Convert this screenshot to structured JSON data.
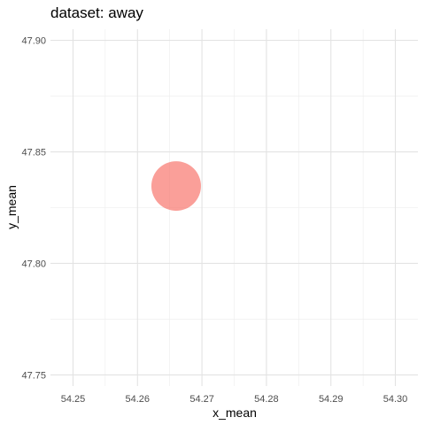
{
  "chart_data": {
    "type": "scatter",
    "title": "dataset: away",
    "xlabel": "x_mean",
    "ylabel": "y_mean",
    "xlim": [
      54.2465,
      54.3035
    ],
    "ylim": [
      47.745,
      47.905
    ],
    "x_ticks": [
      54.25,
      54.26,
      54.27,
      54.28,
      54.29,
      54.3
    ],
    "x_tick_labels": [
      "54.25",
      "54.26",
      "54.27",
      "54.28",
      "54.29",
      "54.30"
    ],
    "y_ticks": [
      47.75,
      47.8,
      47.85,
      47.9
    ],
    "y_tick_labels": [
      "47.75",
      "47.80",
      "47.85",
      "47.90"
    ],
    "grid": true,
    "legend": "none",
    "points": [
      {
        "x": 54.266,
        "y": 47.8347
      }
    ],
    "point_color": "#F8766D"
  }
}
